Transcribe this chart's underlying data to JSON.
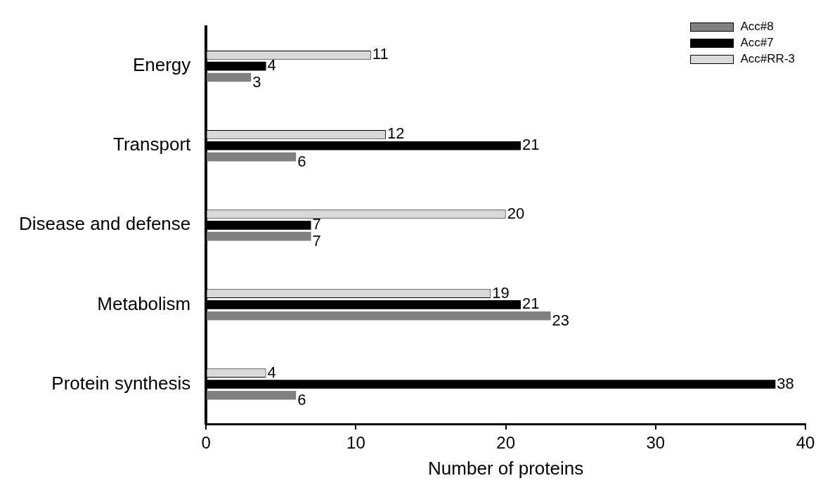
{
  "chart_data": {
    "type": "bar",
    "orientation": "horizontal",
    "xlabel": "Number of proteins",
    "categories": [
      "Energy",
      "Transport",
      "Disease and defense",
      "Metabolism",
      "Protein synthesis"
    ],
    "series": [
      {
        "name": "Acc#8",
        "color": "#808080",
        "values": [
          3,
          6,
          7,
          23,
          6
        ]
      },
      {
        "name": "Acc#7",
        "color": "#000000",
        "values": [
          4,
          21,
          7,
          21,
          38
        ]
      },
      {
        "name": "Acc#RR-3",
        "color": "#d9d9d9",
        "values": [
          11,
          12,
          20,
          19,
          4
        ]
      }
    ],
    "xlim": [
      0,
      40
    ],
    "xticks": [
      0,
      10,
      20,
      30,
      40
    ],
    "grid": false,
    "legend": "top right",
    "data_labels": true
  }
}
